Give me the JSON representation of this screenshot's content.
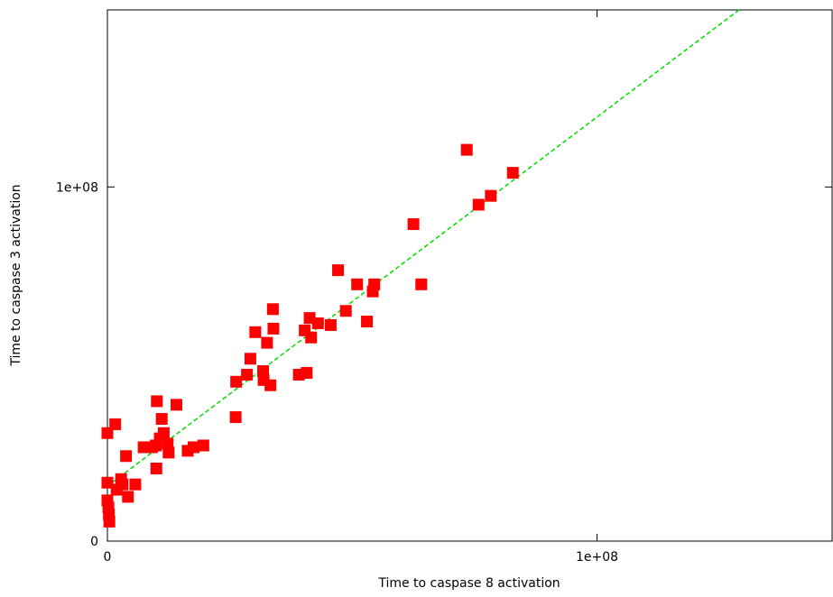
{
  "chart_data": {
    "type": "scatter",
    "xlabel": "Time to caspase 8 activation",
    "ylabel": "Time to caspase 3 activation",
    "xlim": [
      0,
      148000000
    ],
    "ylim": [
      0,
      150000000
    ],
    "x_ticks": [
      {
        "value": 0,
        "label": "0"
      },
      {
        "value": 100000000,
        "label": "1e+08"
      }
    ],
    "y_ticks": [
      {
        "value": 0,
        "label": "0"
      },
      {
        "value": 100000000,
        "label": "1e+08"
      }
    ],
    "grid": false,
    "legend": "none",
    "series": [
      {
        "marker": "square",
        "color": "#ff0000",
        "points": [
          [
            0,
            30500000
          ],
          [
            0,
            16500000
          ],
          [
            0,
            11500000
          ],
          [
            200000,
            9500000
          ],
          [
            300000,
            7500000
          ],
          [
            400000,
            5500000
          ],
          [
            1600000,
            33000000
          ],
          [
            1900000,
            14500000
          ],
          [
            2800000,
            17500000
          ],
          [
            3100000,
            16000000
          ],
          [
            3800000,
            24000000
          ],
          [
            4200000,
            12500000
          ],
          [
            5700000,
            16000000
          ],
          [
            7400000,
            26500000
          ],
          [
            9100000,
            26500000
          ],
          [
            9900000,
            27000000
          ],
          [
            10000000,
            20500000
          ],
          [
            10100000,
            39500000
          ],
          [
            10700000,
            29000000
          ],
          [
            11100000,
            34500000
          ],
          [
            11500000,
            30500000
          ],
          [
            12300000,
            27500000
          ],
          [
            12500000,
            25000000
          ],
          [
            14100000,
            38500000
          ],
          [
            16400000,
            25500000
          ],
          [
            17600000,
            26500000
          ],
          [
            19600000,
            27000000
          ],
          [
            26200000,
            35000000
          ],
          [
            26300000,
            45000000
          ],
          [
            28500000,
            47000000
          ],
          [
            29200000,
            51500000
          ],
          [
            30200000,
            59000000
          ],
          [
            31800000,
            48000000
          ],
          [
            31900000,
            45500000
          ],
          [
            32600000,
            56000000
          ],
          [
            33300000,
            44000000
          ],
          [
            33800000,
            65500000
          ],
          [
            33900000,
            60000000
          ],
          [
            39100000,
            47000000
          ],
          [
            40300000,
            59500000
          ],
          [
            40700000,
            47500000
          ],
          [
            41300000,
            63000000
          ],
          [
            41600000,
            57500000
          ],
          [
            43000000,
            61500000
          ],
          [
            45600000,
            61000000
          ],
          [
            47100000,
            76500000
          ],
          [
            48700000,
            65000000
          ],
          [
            51000000,
            72500000
          ],
          [
            53000000,
            62000000
          ],
          [
            54200000,
            70500000
          ],
          [
            54500000,
            72500000
          ],
          [
            62500000,
            89500000
          ],
          [
            64100000,
            72500000
          ],
          [
            73400000,
            110500000
          ],
          [
            75800000,
            95000000
          ],
          [
            78300000,
            97500000
          ],
          [
            82800000,
            104000000
          ]
        ]
      }
    ],
    "fit_line": {
      "style": "dashed",
      "color": "#00dd00",
      "points": [
        [
          0,
          15500000
        ],
        [
          129000000,
          150000000
        ]
      ]
    }
  }
}
